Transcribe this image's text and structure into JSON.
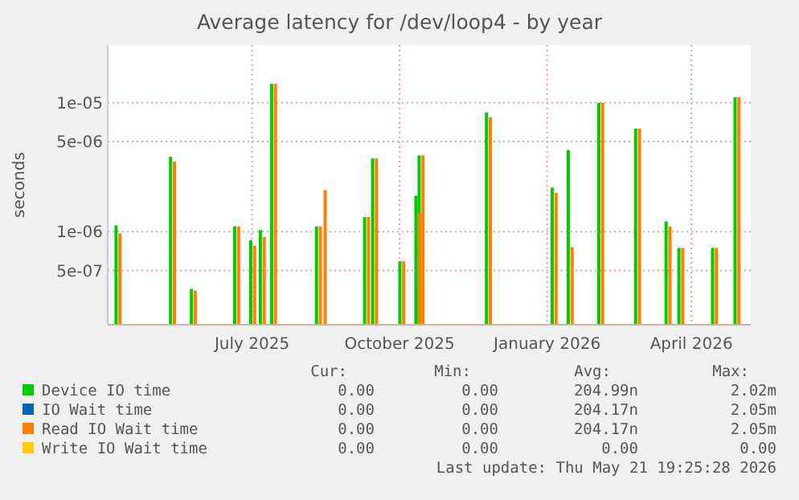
{
  "chart_data": {
    "type": "bar",
    "title": "Average latency for /dev/loop4 - by year",
    "ylabel": "seconds",
    "log": "y",
    "grid": true,
    "legend": "bottom",
    "xlim": [
      "2025-04-02",
      "2026-05-08"
    ],
    "xticks": [
      {
        "value": "2025-07-01",
        "label": "July 2025"
      },
      {
        "value": "2025-10-01",
        "label": "October 2025"
      },
      {
        "value": "2026-01-01",
        "label": "January 2026"
      },
      {
        "value": "2026-04-01",
        "label": "April 2026"
      }
    ],
    "ylim": [
      1.9e-07,
      2.8e-05
    ],
    "yticks": [
      {
        "value": 5e-07,
        "label": "5e-07"
      },
      {
        "value": 1e-06,
        "label": "1e-06"
      },
      {
        "value": 5e-06,
        "label": "5e-06"
      },
      {
        "value": 1e-05,
        "label": "1e-05"
      }
    ],
    "x": [
      "2025-04-09",
      "2025-05-13",
      "2025-05-26",
      "2025-06-22",
      "2025-07-02",
      "2025-07-08",
      "2025-07-15",
      "2025-08-12",
      "2025-08-15",
      "2025-09-11",
      "2025-09-16",
      "2025-10-03",
      "2025-10-13",
      "2025-10-15",
      "2025-11-26",
      "2026-01-06",
      "2026-01-16",
      "2026-02-04",
      "2026-02-27",
      "2026-03-18",
      "2026-03-26",
      "2026-04-16",
      "2026-04-30"
    ],
    "series": [
      {
        "name": "Device IO time",
        "color": "#00cc00",
        "values": [
          1.12e-06,
          3.8e-06,
          3.6e-07,
          1.1e-06,
          8.6e-07,
          1.03e-06,
          1.4e-05,
          1.1e-06,
          null,
          1.3e-06,
          3.7e-06,
          5.9e-07,
          1.9e-06,
          3.9e-06,
          8.4e-06,
          2.2e-06,
          4.3e-06,
          1e-05,
          6.3e-06,
          1.2e-06,
          7.5e-07,
          7.5e-07,
          1.1e-05
        ]
      },
      {
        "name": "IO Wait time",
        "color": "#0066b3",
        "values": [
          null,
          null,
          null,
          null,
          null,
          null,
          null,
          null,
          null,
          null,
          null,
          null,
          null,
          null,
          null,
          null,
          null,
          null,
          null,
          null,
          null,
          null,
          null
        ]
      },
      {
        "name": "Read IO Wait time",
        "color": "#ff8000",
        "values": [
          9.7e-07,
          3.5e-06,
          3.5e-07,
          1.1e-06,
          7.8e-07,
          9.1e-07,
          1.4e-05,
          1.1e-06,
          2.1e-06,
          1.3e-06,
          3.7e-06,
          5.9e-07,
          1.4e-06,
          3.9e-06,
          7.7e-06,
          2e-06,
          7.6e-07,
          1e-05,
          6.3e-06,
          1.1e-06,
          7.5e-07,
          7.5e-07,
          1.1e-05
        ]
      },
      {
        "name": "Write IO Wait time",
        "color": "#ffcc00",
        "values": [
          null,
          null,
          null,
          null,
          null,
          null,
          null,
          null,
          null,
          null,
          null,
          null,
          null,
          null,
          null,
          null,
          null,
          null,
          null,
          null,
          null,
          null,
          null
        ]
      }
    ],
    "annotations": [
      "Cur:",
      "Min:",
      "Avg:",
      "Max:",
      "0.00",
      "0.00",
      "204.99n",
      "2.02m",
      "0.00",
      "0.00",
      "204.17n",
      "2.05m",
      "0.00",
      "0.00",
      "204.17n",
      "2.05m",
      "0.00",
      "0.00",
      "0.00",
      "0.00",
      "Last update: Thu May 21 19:25:28 2026"
    ]
  }
}
